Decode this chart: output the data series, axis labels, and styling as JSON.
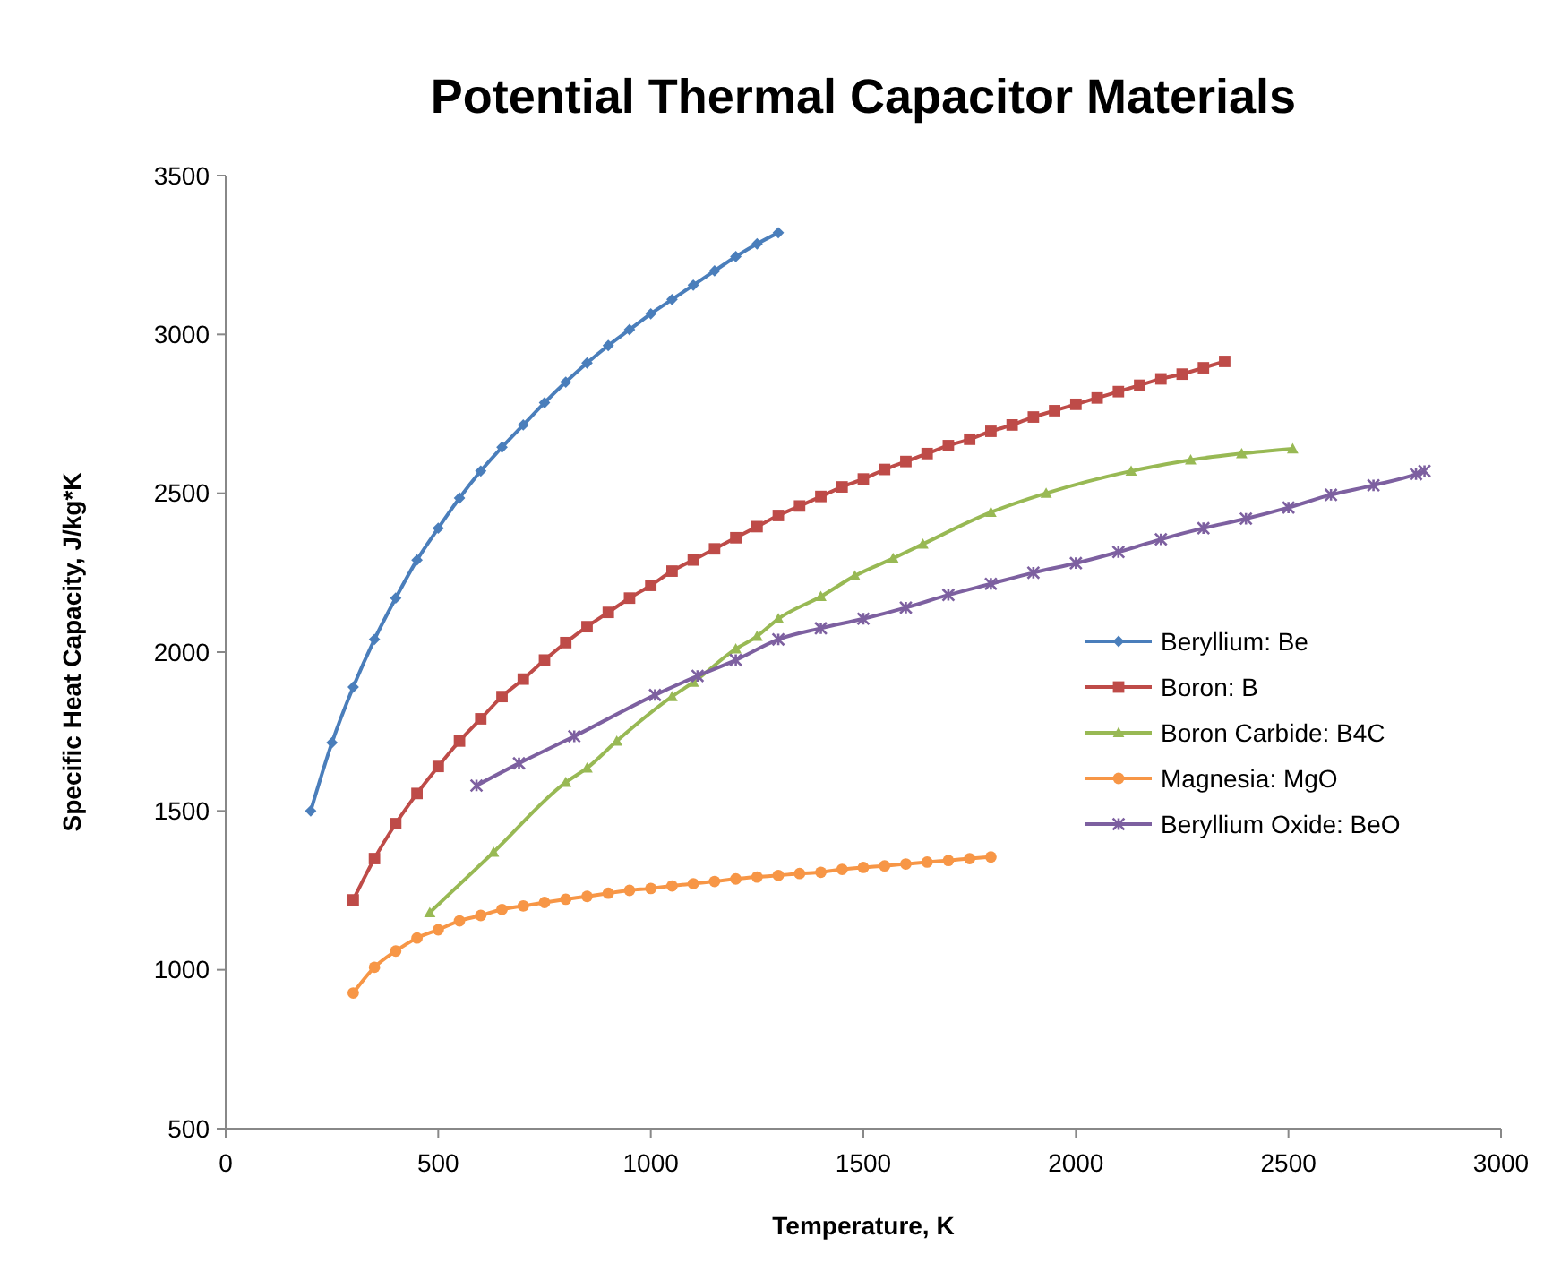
{
  "chart_data": {
    "type": "line",
    "title": "Potential Thermal Capacitor Materials",
    "xlabel": "Temperature, K",
    "ylabel": "Specific Heat Capacity, J/kg*K",
    "xlim": [
      0,
      3000
    ],
    "xticks": [
      0,
      500,
      1000,
      1500,
      2000,
      2500,
      3000
    ],
    "ylim": [
      500,
      3500
    ],
    "yticks": [
      500,
      1000,
      1500,
      2000,
      2500,
      3000,
      3500
    ],
    "grid": false,
    "legend": "right",
    "line_style": "solid",
    "series": [
      {
        "name": "Beryllium: Be",
        "color": "#4a7ebb",
        "marker": "diamond",
        "x": [
          200,
          250,
          300,
          350,
          400,
          450,
          500,
          550,
          600,
          650,
          700,
          750,
          800,
          850,
          900,
          950,
          1000,
          1050,
          1100,
          1150,
          1200,
          1250,
          1300
        ],
        "values": [
          1500,
          1715,
          1890,
          2040,
          2170,
          2290,
          2390,
          2485,
          2570,
          2645,
          2715,
          2785,
          2850,
          2910,
          2965,
          3015,
          3065,
          3110,
          3155,
          3200,
          3245,
          3285,
          3320
        ]
      },
      {
        "name": "Boron: B",
        "color": "#be4b48",
        "marker": "square",
        "x": [
          300,
          350,
          400,
          450,
          500,
          550,
          600,
          650,
          700,
          750,
          800,
          850,
          900,
          950,
          1000,
          1050,
          1100,
          1150,
          1200,
          1250,
          1300,
          1350,
          1400,
          1450,
          1500,
          1550,
          1600,
          1650,
          1700,
          1750,
          1800,
          1850,
          1900,
          1950,
          2000,
          2050,
          2100,
          2150,
          2200,
          2250,
          2300,
          2350
        ],
        "values": [
          1220,
          1350,
          1460,
          1555,
          1640,
          1720,
          1790,
          1860,
          1915,
          1975,
          2030,
          2080,
          2125,
          2170,
          2210,
          2255,
          2290,
          2325,
          2360,
          2395,
          2430,
          2460,
          2490,
          2520,
          2545,
          2575,
          2600,
          2625,
          2650,
          2670,
          2695,
          2715,
          2740,
          2760,
          2780,
          2800,
          2820,
          2840,
          2860,
          2875,
          2895,
          2915
        ]
      },
      {
        "name": "Boron Carbide: B4C",
        "color": "#98b954",
        "marker": "triangle",
        "x": [
          480,
          630,
          800,
          850,
          920,
          1050,
          1100,
          1200,
          1250,
          1300,
          1400,
          1480,
          1570,
          1640,
          1800,
          1930,
          2130,
          2270,
          2390,
          2510
        ],
        "values": [
          1180,
          1370,
          1590,
          1635,
          1720,
          1860,
          1905,
          2010,
          2050,
          2105,
          2175,
          2240,
          2295,
          2340,
          2440,
          2500,
          2570,
          2605,
          2625,
          2640
        ]
      },
      {
        "name": "Magnesia: MgO",
        "color": "#f79646",
        "marker": "circle",
        "x": [
          300,
          350,
          400,
          450,
          500,
          550,
          600,
          650,
          700,
          750,
          800,
          850,
          900,
          950,
          1000,
          1050,
          1100,
          1150,
          1200,
          1250,
          1300,
          1350,
          1400,
          1450,
          1500,
          1550,
          1600,
          1650,
          1700,
          1750,
          1800
        ],
        "values": [
          927,
          1008,
          1059,
          1100,
          1126,
          1154,
          1171,
          1190,
          1201,
          1212,
          1222,
          1231,
          1241,
          1250,
          1256,
          1264,
          1271,
          1278,
          1286,
          1292,
          1297,
          1303,
          1307,
          1316,
          1322,
          1327,
          1333,
          1339,
          1344,
          1350,
          1355
        ]
      },
      {
        "name": "Beryllium Oxide: BeO",
        "color": "#7d60a0",
        "marker": "cross",
        "x": [
          590,
          690,
          820,
          1010,
          1110,
          1200,
          1300,
          1400,
          1500,
          1600,
          1700,
          1800,
          1900,
          2000,
          2100,
          2200,
          2300,
          2400,
          2500,
          2600,
          2700,
          2800,
          2820
        ],
        "values": [
          1580,
          1650,
          1735,
          1865,
          1925,
          1975,
          2040,
          2075,
          2105,
          2140,
          2180,
          2215,
          2250,
          2280,
          2315,
          2355,
          2390,
          2420,
          2455,
          2495,
          2525,
          2560,
          2570
        ]
      }
    ]
  }
}
